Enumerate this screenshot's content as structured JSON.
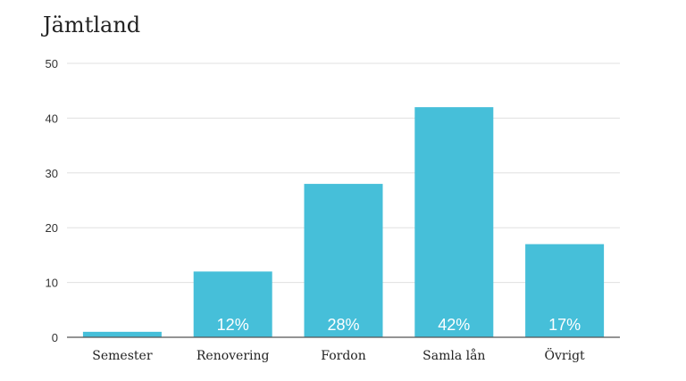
{
  "chart_data": {
    "type": "bar",
    "title": "Jämtland",
    "categories": [
      "Semester",
      "Renovering",
      "Fordon",
      "Samla lån",
      "Övrigt"
    ],
    "values": [
      1,
      12,
      28,
      42,
      17
    ],
    "data_labels": [
      "",
      "12%",
      "28%",
      "42%",
      "17%"
    ],
    "ylim": [
      0,
      50
    ],
    "yticks": [
      0,
      10,
      20,
      30,
      40,
      50
    ],
    "xlabel": "",
    "ylabel": "",
    "grid": true,
    "legend": "none",
    "bar_color": "#46bfd9",
    "grid_color": "#e0e0e0",
    "axis_color": "#555555"
  }
}
